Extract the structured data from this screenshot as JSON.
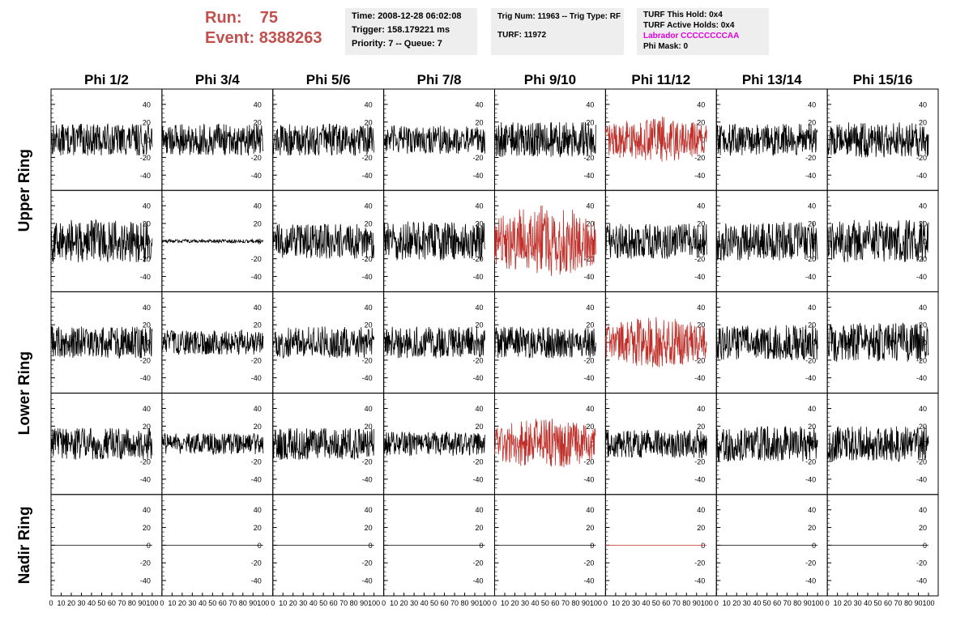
{
  "run": {
    "run_label": "Run:",
    "run_value": "75",
    "event_label": "Event:",
    "event_value": "8388263"
  },
  "time_box": {
    "time": "Time: 2008-12-28 06:02:08",
    "trigger": "Trigger: 158.179221 ms",
    "priority": "Priority: 7 -- Queue: 7"
  },
  "trig_box": {
    "trig": "Trig Num: 11963 -- Trig Type: RF",
    "turf": "TURF: 11972"
  },
  "turf_box": {
    "this_hold": "TURF This Hold: 0x4",
    "active_holds": "TURF Active Holds: 0x4",
    "labrador": "Labrador CCCCCCCCAA",
    "phi_mask": "Phi Mask: 0"
  },
  "colors": {
    "title_red": "#c0504d",
    "trace_black": "#000000",
    "trace_red": "#c0302a",
    "labrador_magenta": "#e000e0",
    "box_bg": "#eeeeee"
  },
  "chart_data": {
    "type": "line",
    "columns": [
      "Phi 1/2",
      "Phi 3/4",
      "Phi 5/6",
      "Phi 7/8",
      "Phi 9/10",
      "Phi 11/12",
      "Phi 13/14",
      "Phi 15/16"
    ],
    "rows": [
      "Upper Ring",
      "Lower Ring",
      "Nadir Ring"
    ],
    "xlim": [
      0,
      100
    ],
    "x_ticks": [
      0,
      10,
      20,
      30,
      40,
      50,
      60,
      70,
      80,
      90,
      100
    ],
    "ylim": [
      -50,
      50
    ],
    "y_ticks": [
      40,
      20,
      0,
      -20,
      -40
    ],
    "panels": [
      {
        "row": 0,
        "col": 0,
        "amplitude": 18,
        "color": "black"
      },
      {
        "row": 0,
        "col": 1,
        "amplitude": 18,
        "color": "black"
      },
      {
        "row": 0,
        "col": 2,
        "amplitude": 18,
        "color": "black"
      },
      {
        "row": 0,
        "col": 3,
        "amplitude": 16,
        "color": "black"
      },
      {
        "row": 0,
        "col": 4,
        "amplitude": 20,
        "color": "black"
      },
      {
        "row": 0,
        "col": 5,
        "amplitude": 22,
        "color": "red"
      },
      {
        "row": 0,
        "col": 6,
        "amplitude": 18,
        "color": "black"
      },
      {
        "row": 0,
        "col": 7,
        "amplitude": 20,
        "color": "black"
      },
      {
        "row": 1,
        "col": 0,
        "amplitude": 24,
        "color": "black"
      },
      {
        "row": 1,
        "col": 1,
        "amplitude": 2,
        "color": "black"
      },
      {
        "row": 1,
        "col": 2,
        "amplitude": 20,
        "color": "black"
      },
      {
        "row": 1,
        "col": 3,
        "amplitude": 22,
        "color": "black"
      },
      {
        "row": 1,
        "col": 4,
        "amplitude": 34,
        "color": "red"
      },
      {
        "row": 1,
        "col": 5,
        "amplitude": 20,
        "color": "black"
      },
      {
        "row": 1,
        "col": 6,
        "amplitude": 22,
        "color": "black"
      },
      {
        "row": 1,
        "col": 7,
        "amplitude": 24,
        "color": "black"
      },
      {
        "row": 2,
        "col": 0,
        "amplitude": 18,
        "color": "black"
      },
      {
        "row": 2,
        "col": 1,
        "amplitude": 14,
        "color": "black"
      },
      {
        "row": 2,
        "col": 2,
        "amplitude": 18,
        "color": "black"
      },
      {
        "row": 2,
        "col": 3,
        "amplitude": 18,
        "color": "black"
      },
      {
        "row": 2,
        "col": 4,
        "amplitude": 18,
        "color": "black"
      },
      {
        "row": 2,
        "col": 5,
        "amplitude": 24,
        "color": "red"
      },
      {
        "row": 2,
        "col": 6,
        "amplitude": 20,
        "color": "black"
      },
      {
        "row": 2,
        "col": 7,
        "amplitude": 22,
        "color": "black"
      },
      {
        "row": 3,
        "col": 0,
        "amplitude": 18,
        "color": "black"
      },
      {
        "row": 3,
        "col": 1,
        "amplitude": 12,
        "color": "black"
      },
      {
        "row": 3,
        "col": 2,
        "amplitude": 18,
        "color": "black"
      },
      {
        "row": 3,
        "col": 3,
        "amplitude": 14,
        "color": "black"
      },
      {
        "row": 3,
        "col": 4,
        "amplitude": 24,
        "color": "red"
      },
      {
        "row": 3,
        "col": 5,
        "amplitude": 16,
        "color": "black"
      },
      {
        "row": 3,
        "col": 6,
        "amplitude": 20,
        "color": "black"
      },
      {
        "row": 3,
        "col": 7,
        "amplitude": 20,
        "color": "black"
      },
      {
        "row": 4,
        "col": 0,
        "amplitude": 0,
        "color": "black"
      },
      {
        "row": 4,
        "col": 1,
        "amplitude": 0,
        "color": "black"
      },
      {
        "row": 4,
        "col": 2,
        "amplitude": 0,
        "color": "black"
      },
      {
        "row": 4,
        "col": 3,
        "amplitude": 0,
        "color": "black"
      },
      {
        "row": 4,
        "col": 4,
        "amplitude": 0,
        "color": "black"
      },
      {
        "row": 4,
        "col": 5,
        "amplitude": 0,
        "color": "red"
      },
      {
        "row": 4,
        "col": 6,
        "amplitude": 0,
        "color": "black"
      },
      {
        "row": 4,
        "col": 7,
        "amplitude": 0,
        "color": "black"
      }
    ]
  }
}
